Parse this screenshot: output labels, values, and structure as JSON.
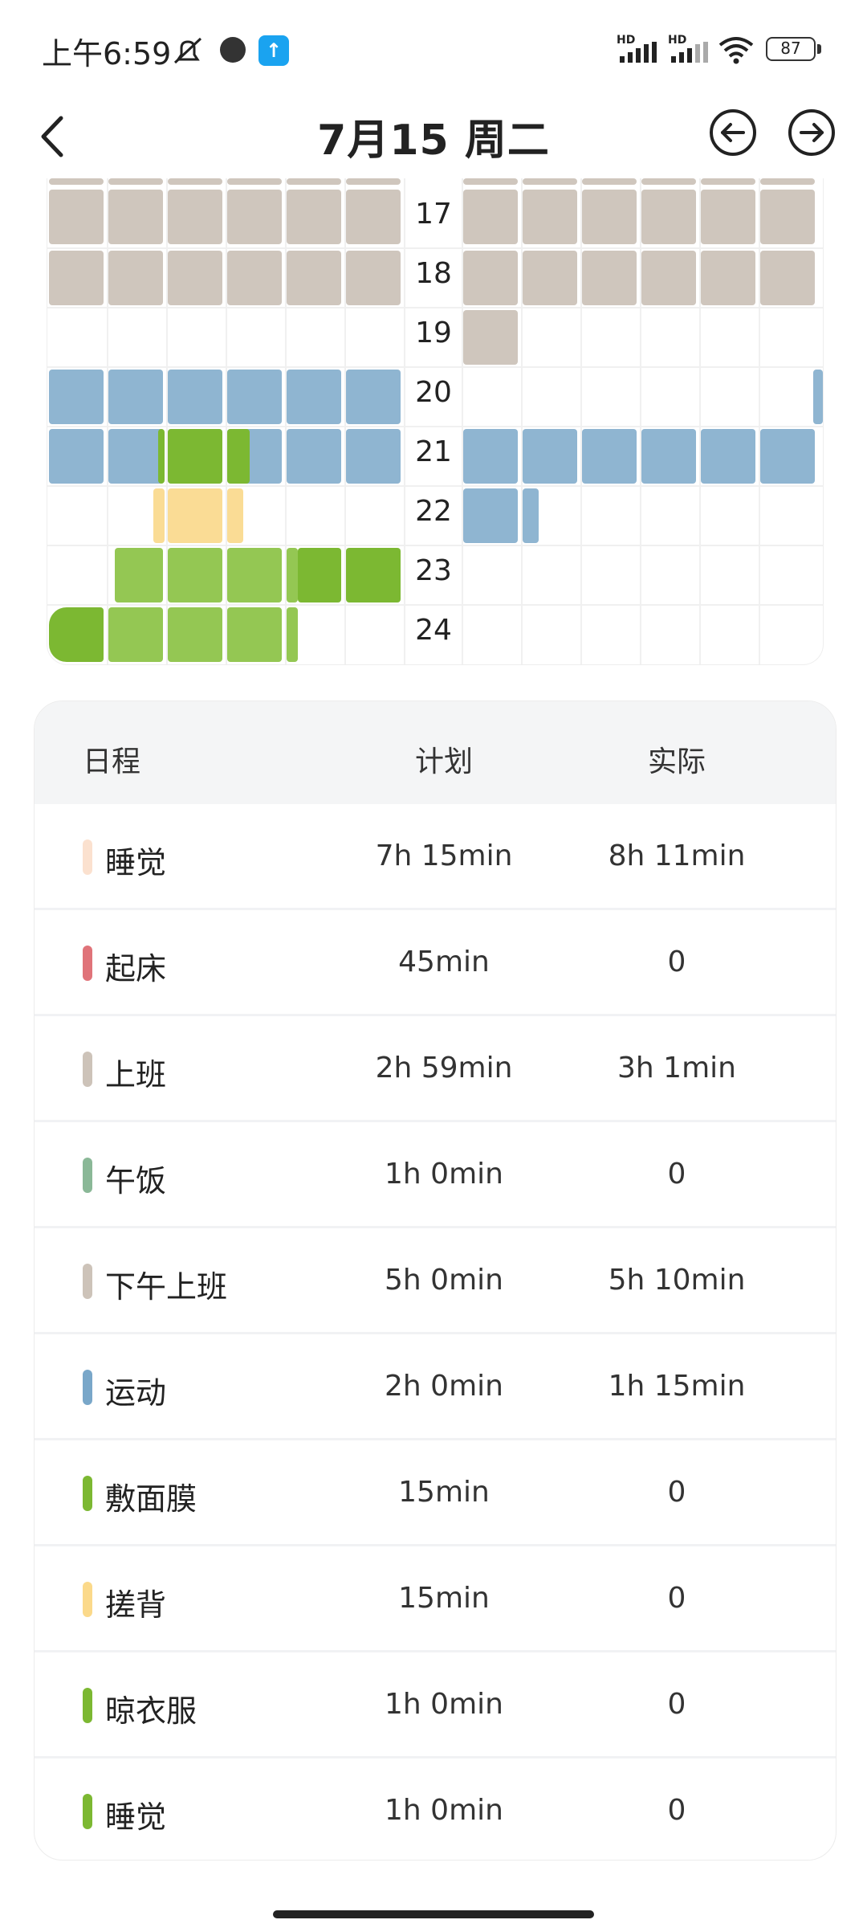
{
  "status_bar": {
    "time": "上午6:59",
    "network_label_1": "HD",
    "network_label_2": "HD",
    "battery": "87"
  },
  "header": {
    "title": "7月15 周二",
    "back_icon": "chevron-left-icon",
    "prev_icon": "arrow-left-circle-icon",
    "next_icon": "arrow-right-circle-icon"
  },
  "calendar": {
    "hours": [
      "17",
      "18",
      "19",
      "20",
      "21",
      "22",
      "23",
      "24"
    ],
    "colors": {
      "work": "#cfc6bd",
      "exercise": "#8fb5d1",
      "green_light": "#94c753",
      "green_dark": "#7cb832",
      "yellow": "#fadc95"
    }
  },
  "table": {
    "headers": {
      "name": "日程",
      "plan": "计划",
      "actual": "实际"
    },
    "rows": [
      {
        "name": "睡觉",
        "plan": "7h 15min",
        "actual": "8h 11min",
        "color": "#fbe1cf"
      },
      {
        "name": "起床",
        "plan": "45min",
        "actual": "0",
        "color": "#e07379"
      },
      {
        "name": "上班",
        "plan": "2h 59min",
        "actual": "3h 1min",
        "color": "#cdc3b9"
      },
      {
        "name": "午饭",
        "plan": "1h 0min",
        "actual": "0",
        "color": "#8ab897"
      },
      {
        "name": "下午上班",
        "plan": "5h 0min",
        "actual": "5h 10min",
        "color": "#cdc3b9"
      },
      {
        "name": "运动",
        "plan": "2h 0min",
        "actual": "1h 15min",
        "color": "#79a7c9"
      },
      {
        "name": "敷面膜",
        "plan": "15min",
        "actual": "0",
        "color": "#7cb832"
      },
      {
        "name": "搓背",
        "plan": "15min",
        "actual": "0",
        "color": "#fbd98a"
      },
      {
        "name": "晾衣服",
        "plan": "1h 0min",
        "actual": "0",
        "color": "#7cb832"
      },
      {
        "name": "睡觉",
        "plan": "1h 0min",
        "actual": "0",
        "color": "#7cb832"
      }
    ]
  }
}
